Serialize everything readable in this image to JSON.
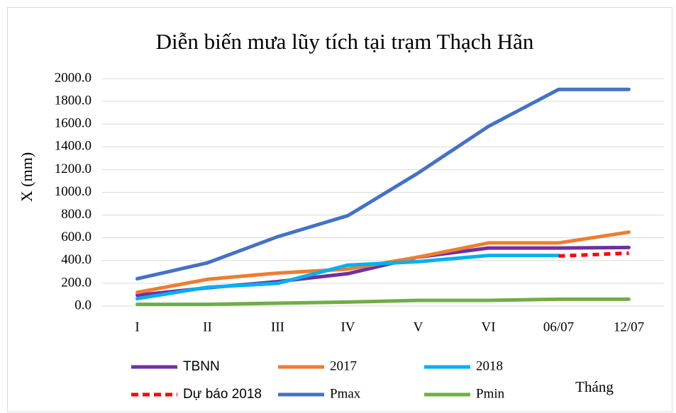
{
  "chart_data": {
    "type": "line",
    "title": "Diễn biến mưa lũy tích tại trạm Thạch Hãn",
    "y_label": "X (mm)",
    "x_label": "Tháng",
    "categories": [
      "I",
      "II",
      "III",
      "IV",
      "V",
      "VI",
      "06/07",
      "12/07"
    ],
    "series": [
      {
        "name": "TBNN",
        "color": "#7030a0",
        "values": [
          95,
          160,
          215,
          285,
          430,
          510,
          510,
          515
        ]
      },
      {
        "name": "2017",
        "color": "#ed7d31",
        "values": [
          120,
          235,
          290,
          325,
          430,
          555,
          555,
          650
        ]
      },
      {
        "name": "2018",
        "color": "#00b0f0",
        "values": [
          65,
          165,
          200,
          360,
          390,
          445,
          445,
          null
        ]
      },
      {
        "name": "Dự báo 2018",
        "color": "#ff0000",
        "line_style": "dashed",
        "values": [
          null,
          null,
          null,
          null,
          null,
          null,
          440,
          465
        ]
      },
      {
        "name": "Pmax",
        "color": "#4472c4",
        "values": [
          240,
          380,
          610,
          795,
          1170,
          1580,
          1905,
          1905
        ]
      },
      {
        "name": "Pmin",
        "color": "#70ad47",
        "values": [
          15,
          15,
          25,
          35,
          50,
          50,
          60,
          60
        ]
      }
    ],
    "ylim": [
      0,
      2000
    ],
    "yticks": [
      {
        "value": 0,
        "label": "0.0"
      },
      {
        "value": 200,
        "label": "200.0"
      },
      {
        "value": 400,
        "label": "400.0"
      },
      {
        "value": 600,
        "label": "600.0"
      },
      {
        "value": 800,
        "label": "800.0"
      },
      {
        "value": 1000,
        "label": "1000.0"
      },
      {
        "value": 1200,
        "label": "1200.0"
      },
      {
        "value": 1400,
        "label": "1400.0"
      },
      {
        "value": 1600,
        "label": "1600.0"
      },
      {
        "value": 1800,
        "label": "1800.0"
      },
      {
        "value": 2000,
        "label": "2000.0"
      }
    ],
    "grid": true,
    "legend": "bottom"
  }
}
